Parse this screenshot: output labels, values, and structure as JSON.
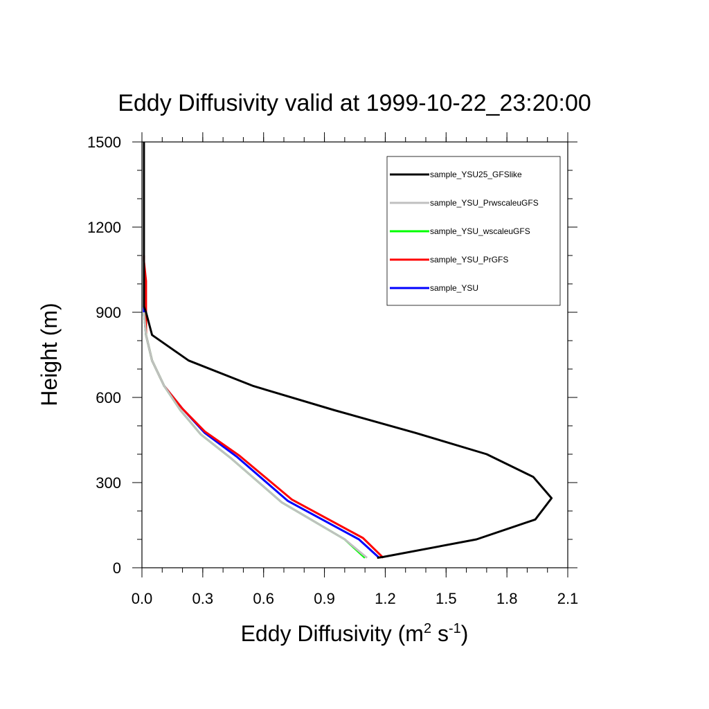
{
  "chart_data": {
    "type": "line",
    "title": "Eddy Diffusivity valid at 1999-10-22_23:20:00",
    "xlabel": {
      "base": "Eddy Diffusivity (m",
      "sup1": "2",
      "mid": " s",
      "sup2": "-1",
      "end": ")"
    },
    "ylabel": "Height (m)",
    "xlim": [
      0.0,
      2.1
    ],
    "ylim": [
      0,
      1500
    ],
    "xticks": [
      {
        "value": 0.0,
        "label": "0.0"
      },
      {
        "value": 0.3,
        "label": "0.3"
      },
      {
        "value": 0.6,
        "label": "0.6"
      },
      {
        "value": 0.9,
        "label": "0.9"
      },
      {
        "value": 1.2,
        "label": "1.2"
      },
      {
        "value": 1.5,
        "label": "1.5"
      },
      {
        "value": 1.8,
        "label": "1.8"
      },
      {
        "value": 2.1,
        "label": "2.1"
      }
    ],
    "yticks": [
      {
        "value": 0,
        "label": "0"
      },
      {
        "value": 300,
        "label": "300"
      },
      {
        "value": 600,
        "label": "600"
      },
      {
        "value": 900,
        "label": "900"
      },
      {
        "value": 1200,
        "label": "1200"
      },
      {
        "value": 1500,
        "label": "1500"
      }
    ],
    "x_minor_step": 0.1,
    "y_minor_step": 100,
    "grid": false,
    "legend_position": "top-right",
    "series": [
      {
        "name": "sample_YSU",
        "color": "#0000ff",
        "x": [
          1.17,
          1.07,
          0.72,
          0.47,
          0.31,
          0.2,
          0.11,
          0.05,
          0.02,
          0.01,
          0.01
        ],
        "y": [
          35,
          100,
          235,
          390,
          475,
          560,
          640,
          730,
          820,
          900,
          920
        ]
      },
      {
        "name": "sample_YSU_PrGFS",
        "color": "#ff0000",
        "x": [
          1.19,
          1.09,
          0.74,
          0.48,
          0.31,
          0.2,
          0.11,
          0.05,
          0.02,
          0.02,
          0.02,
          0.01,
          0.01
        ],
        "y": [
          35,
          105,
          240,
          395,
          480,
          560,
          640,
          730,
          820,
          900,
          1010,
          1080,
          1100
        ]
      },
      {
        "name": "sample_YSU_wscaleuGFS",
        "color": "#00ff00",
        "x": [
          1.1,
          1.0,
          0.69,
          0.44,
          0.29,
          0.19,
          0.11,
          0.05,
          0.02,
          0.01
        ],
        "y": [
          35,
          100,
          230,
          385,
          470,
          555,
          640,
          730,
          820,
          900
        ]
      },
      {
        "name": "sample_YSU_PrwscaleuGFS",
        "color": "#c0c0c0",
        "x": [
          1.11,
          1.0,
          0.69,
          0.44,
          0.29,
          0.19,
          0.11,
          0.05,
          0.02,
          0.01
        ],
        "y": [
          35,
          100,
          230,
          385,
          470,
          555,
          640,
          730,
          820,
          900
        ]
      },
      {
        "name": "sample_YSU25_GFSlike",
        "color": "#000000",
        "x": [
          1.16,
          1.19,
          1.65,
          1.94,
          2.02,
          1.93,
          1.7,
          1.35,
          0.95,
          0.55,
          0.23,
          0.05,
          0.02,
          0.01,
          0.01,
          0.01,
          0.01
        ],
        "y": [
          35,
          38,
          100,
          170,
          245,
          320,
          400,
          475,
          555,
          640,
          730,
          820,
          900,
          920,
          1000,
          1200,
          1500
        ]
      }
    ],
    "legend_order": [
      "sample_YSU25_GFSlike",
      "sample_YSU_PrwscaleuGFS",
      "sample_YSU_wscaleuGFS",
      "sample_YSU_PrGFS",
      "sample_YSU"
    ]
  }
}
